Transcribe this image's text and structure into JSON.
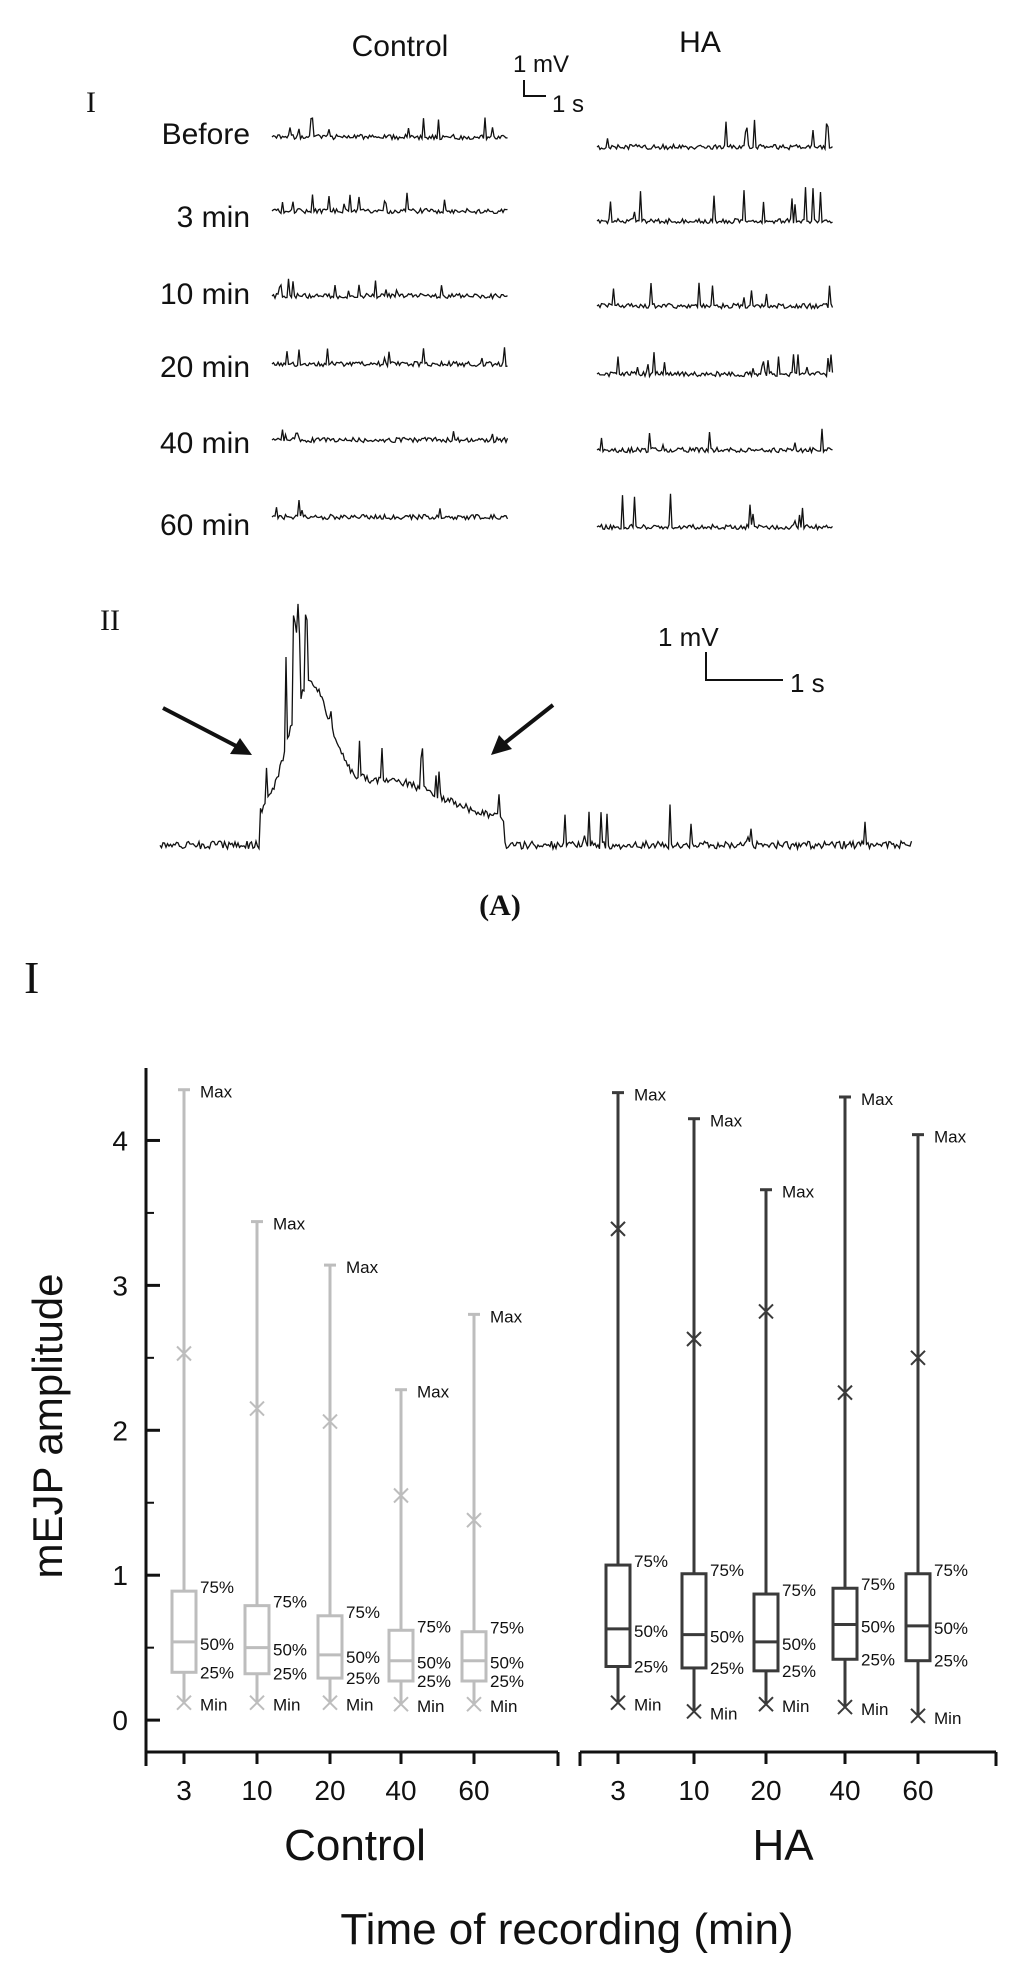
{
  "panel_a": {
    "label_i": "I",
    "label_ii": "II",
    "col_control": "Control",
    "col_ha": "HA",
    "scale_mv": "1 mV",
    "scale_s": "1 s",
    "rows": [
      "Before",
      "3 min",
      "10 min",
      "20 min",
      "40 min",
      "60 min"
    ],
    "caption": "(A)"
  },
  "panel_b": {
    "label_i": "I"
  },
  "chart_data": {
    "type": "box",
    "ylabel": "mEJP amplitude",
    "xlabel": "Time of recording (min)",
    "ylim": [
      -0.22,
      4.5
    ],
    "yticks": [
      "0",
      "1",
      "2",
      "3",
      "4"
    ],
    "grid": false,
    "box_labels": {
      "max": "Max",
      "min": "Min",
      "p75": "75%",
      "p50": "50%",
      "p25": "25%"
    },
    "groups": [
      {
        "name": "Control",
        "color": "#bdbdbd",
        "categories": [
          "3",
          "10",
          "20",
          "40",
          "60"
        ],
        "boxes": [
          {
            "min": 0.12,
            "p25": 0.33,
            "median": 0.54,
            "p75": 0.89,
            "max": 4.35,
            "mean": 2.53
          },
          {
            "min": 0.12,
            "p25": 0.32,
            "median": 0.5,
            "p75": 0.79,
            "max": 3.44,
            "mean": 2.15
          },
          {
            "min": 0.12,
            "p25": 0.29,
            "median": 0.45,
            "p75": 0.72,
            "max": 3.14,
            "mean": 2.06
          },
          {
            "min": 0.11,
            "p25": 0.27,
            "median": 0.41,
            "p75": 0.62,
            "max": 2.28,
            "mean": 1.55
          },
          {
            "min": 0.11,
            "p25": 0.27,
            "median": 0.41,
            "p75": 0.61,
            "max": 2.8,
            "mean": 1.38
          }
        ]
      },
      {
        "name": "HA",
        "color": "#3a3a3a",
        "categories": [
          "3",
          "10",
          "20",
          "40",
          "60"
        ],
        "boxes": [
          {
            "min": 0.12,
            "p25": 0.37,
            "median": 0.63,
            "p75": 1.07,
            "max": 4.33,
            "mean": 3.39
          },
          {
            "min": 0.06,
            "p25": 0.36,
            "median": 0.59,
            "p75": 1.01,
            "max": 4.15,
            "mean": 2.63
          },
          {
            "min": 0.11,
            "p25": 0.34,
            "median": 0.54,
            "p75": 0.87,
            "max": 3.66,
            "mean": 2.82
          },
          {
            "min": 0.09,
            "p25": 0.42,
            "median": 0.66,
            "p75": 0.91,
            "max": 4.3,
            "mean": 2.26
          },
          {
            "min": 0.03,
            "p25": 0.41,
            "median": 0.65,
            "p75": 1.01,
            "max": 4.04,
            "mean": 2.5
          }
        ]
      }
    ]
  }
}
